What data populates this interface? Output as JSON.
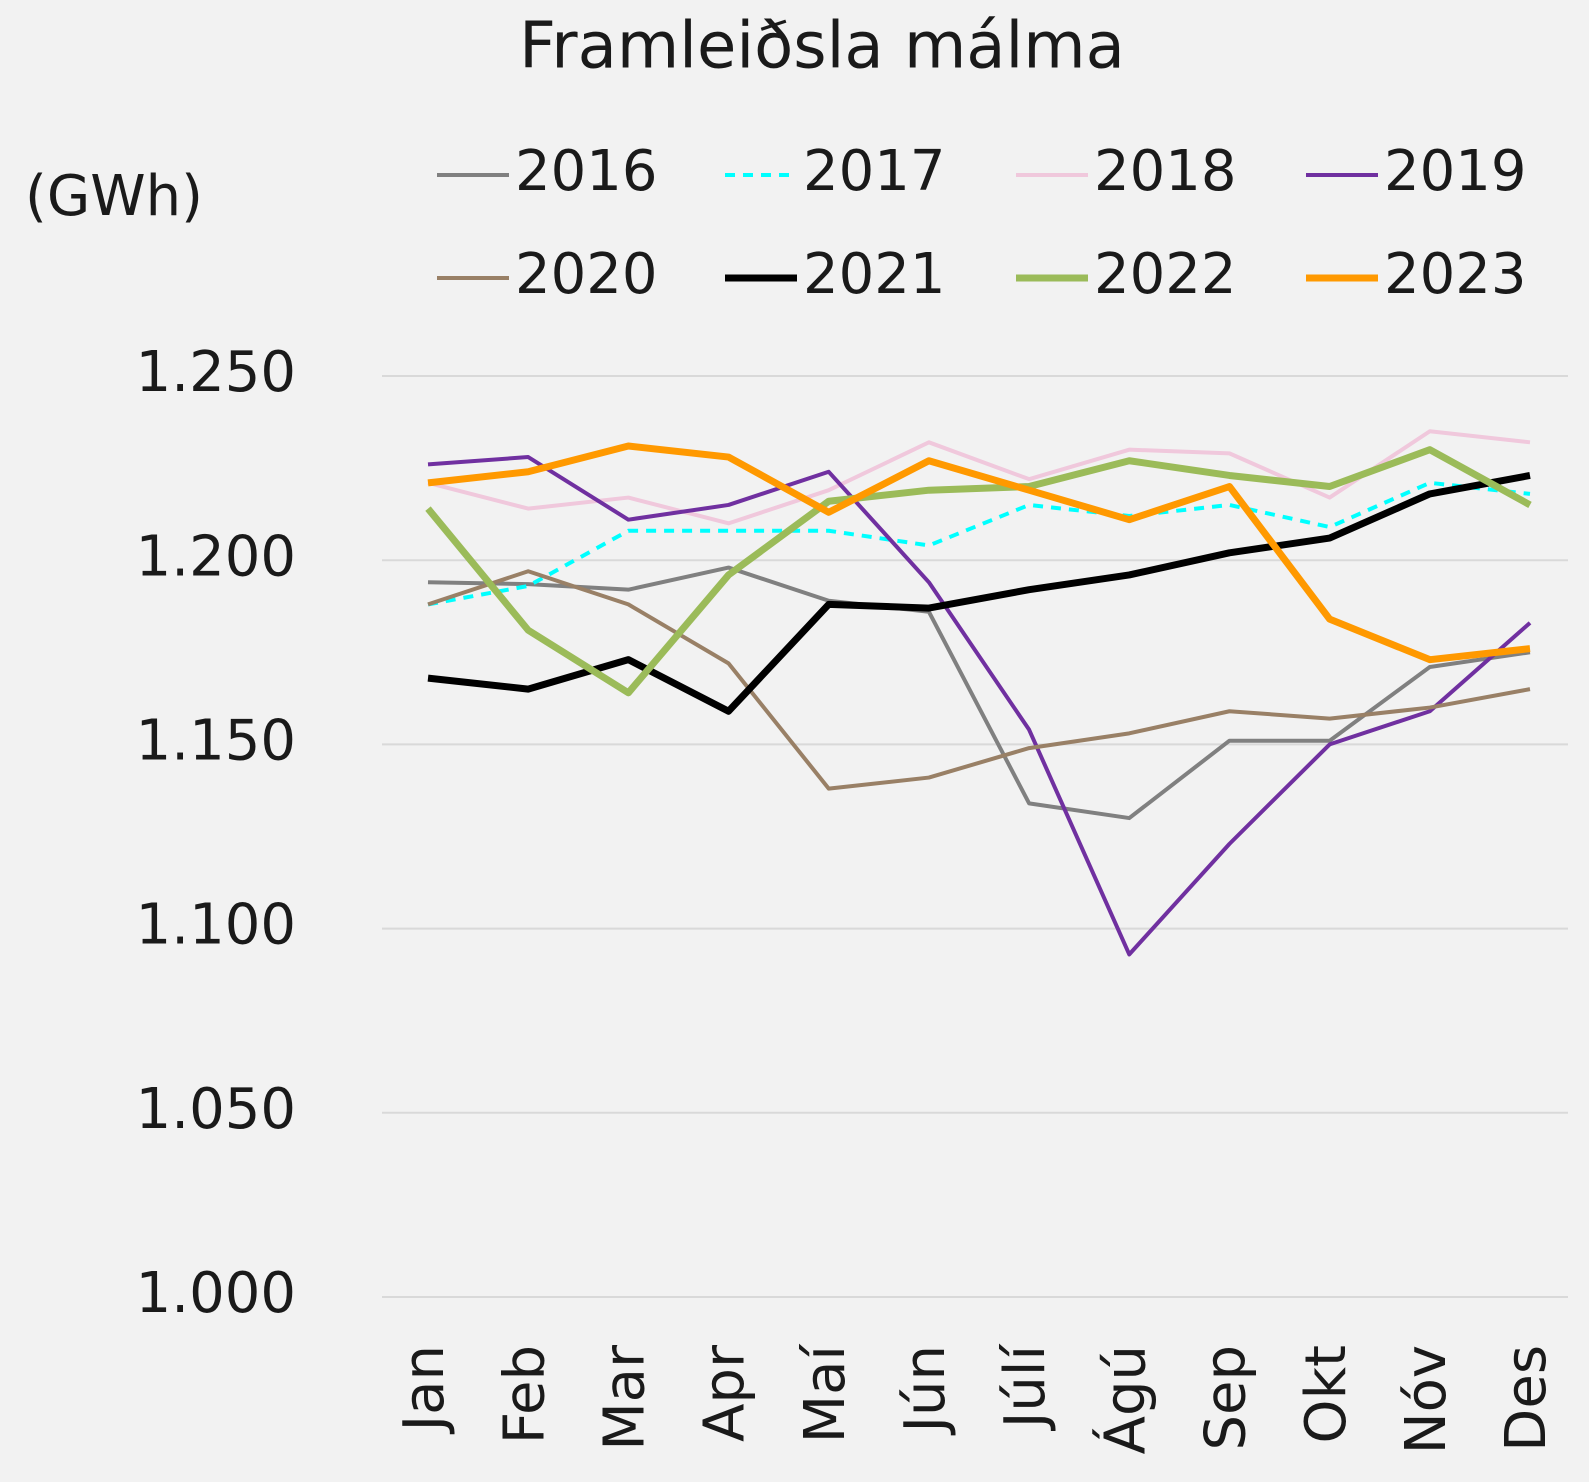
{
  "chart_data": {
    "type": "line",
    "title": "Framleiðsla málma",
    "y_label": "(GWh)",
    "categories": [
      "Jan",
      "Feb",
      "Mar",
      "Apr",
      "Maí",
      "Jún",
      "Júlí",
      "Ágú",
      "Sep",
      "Okt",
      "Nóv",
      "Des"
    ],
    "ylim": [
      1000,
      1250
    ],
    "yticks": [
      {
        "value": 1000,
        "label": "1.000"
      },
      {
        "value": 1050,
        "label": "1.050"
      },
      {
        "value": 1100,
        "label": "1.100"
      },
      {
        "value": 1150,
        "label": "1.150"
      },
      {
        "value": 1200,
        "label": "1.200"
      },
      {
        "value": 1250,
        "label": "1.250"
      }
    ],
    "grid": true,
    "series": [
      {
        "name": "2016",
        "color": "#808080",
        "width": 4,
        "dashed": false,
        "values": [
          1194,
          1193.5,
          1192,
          1198,
          1189,
          1186,
          1134,
          1130,
          1151,
          1151,
          1171,
          1175
        ]
      },
      {
        "name": "2017",
        "color": "#00ffff",
        "width": 4,
        "dashed": true,
        "values": [
          1188,
          1193,
          1208,
          1208,
          1208,
          1204,
          1215,
          1212,
          1215,
          1209,
          1221,
          1218
        ]
      },
      {
        "name": "2018",
        "color": "#f0c8dc",
        "width": 4,
        "dashed": false,
        "values": [
          1221,
          1214,
          1217,
          1210,
          1219,
          1232,
          1222,
          1230,
          1229,
          1217,
          1235,
          1232
        ]
      },
      {
        "name": "2019",
        "color": "#7030a0",
        "width": 4,
        "dashed": false,
        "values": [
          1226,
          1228,
          1211,
          1215,
          1224,
          1194,
          1154,
          1093,
          1123,
          1150,
          1159,
          1183
        ]
      },
      {
        "name": "2020",
        "color": "#998066",
        "width": 4,
        "dashed": false,
        "values": [
          1188,
          1197,
          1188,
          1172,
          1138,
          1141,
          1149,
          1153,
          1159,
          1157,
          1160,
          1165
        ]
      },
      {
        "name": "2021",
        "color": "#000000",
        "width": 7,
        "dashed": false,
        "values": [
          1168,
          1165,
          1173,
          1159,
          1188,
          1187,
          1192,
          1196,
          1202,
          1206,
          1218,
          1223
        ]
      },
      {
        "name": "2022",
        "color": "#9bbb59",
        "width": 7,
        "dashed": false,
        "values": [
          1214,
          1181,
          1164,
          1196,
          1216,
          1219,
          1220,
          1227,
          1223,
          1220,
          1230,
          1215
        ]
      },
      {
        "name": "2023",
        "color": "#ff9900",
        "width": 7,
        "dashed": false,
        "values": [
          1221,
          1224,
          1231,
          1228,
          1213,
          1227,
          1219,
          1211,
          1220,
          1184,
          1173,
          1176
        ]
      }
    ]
  }
}
